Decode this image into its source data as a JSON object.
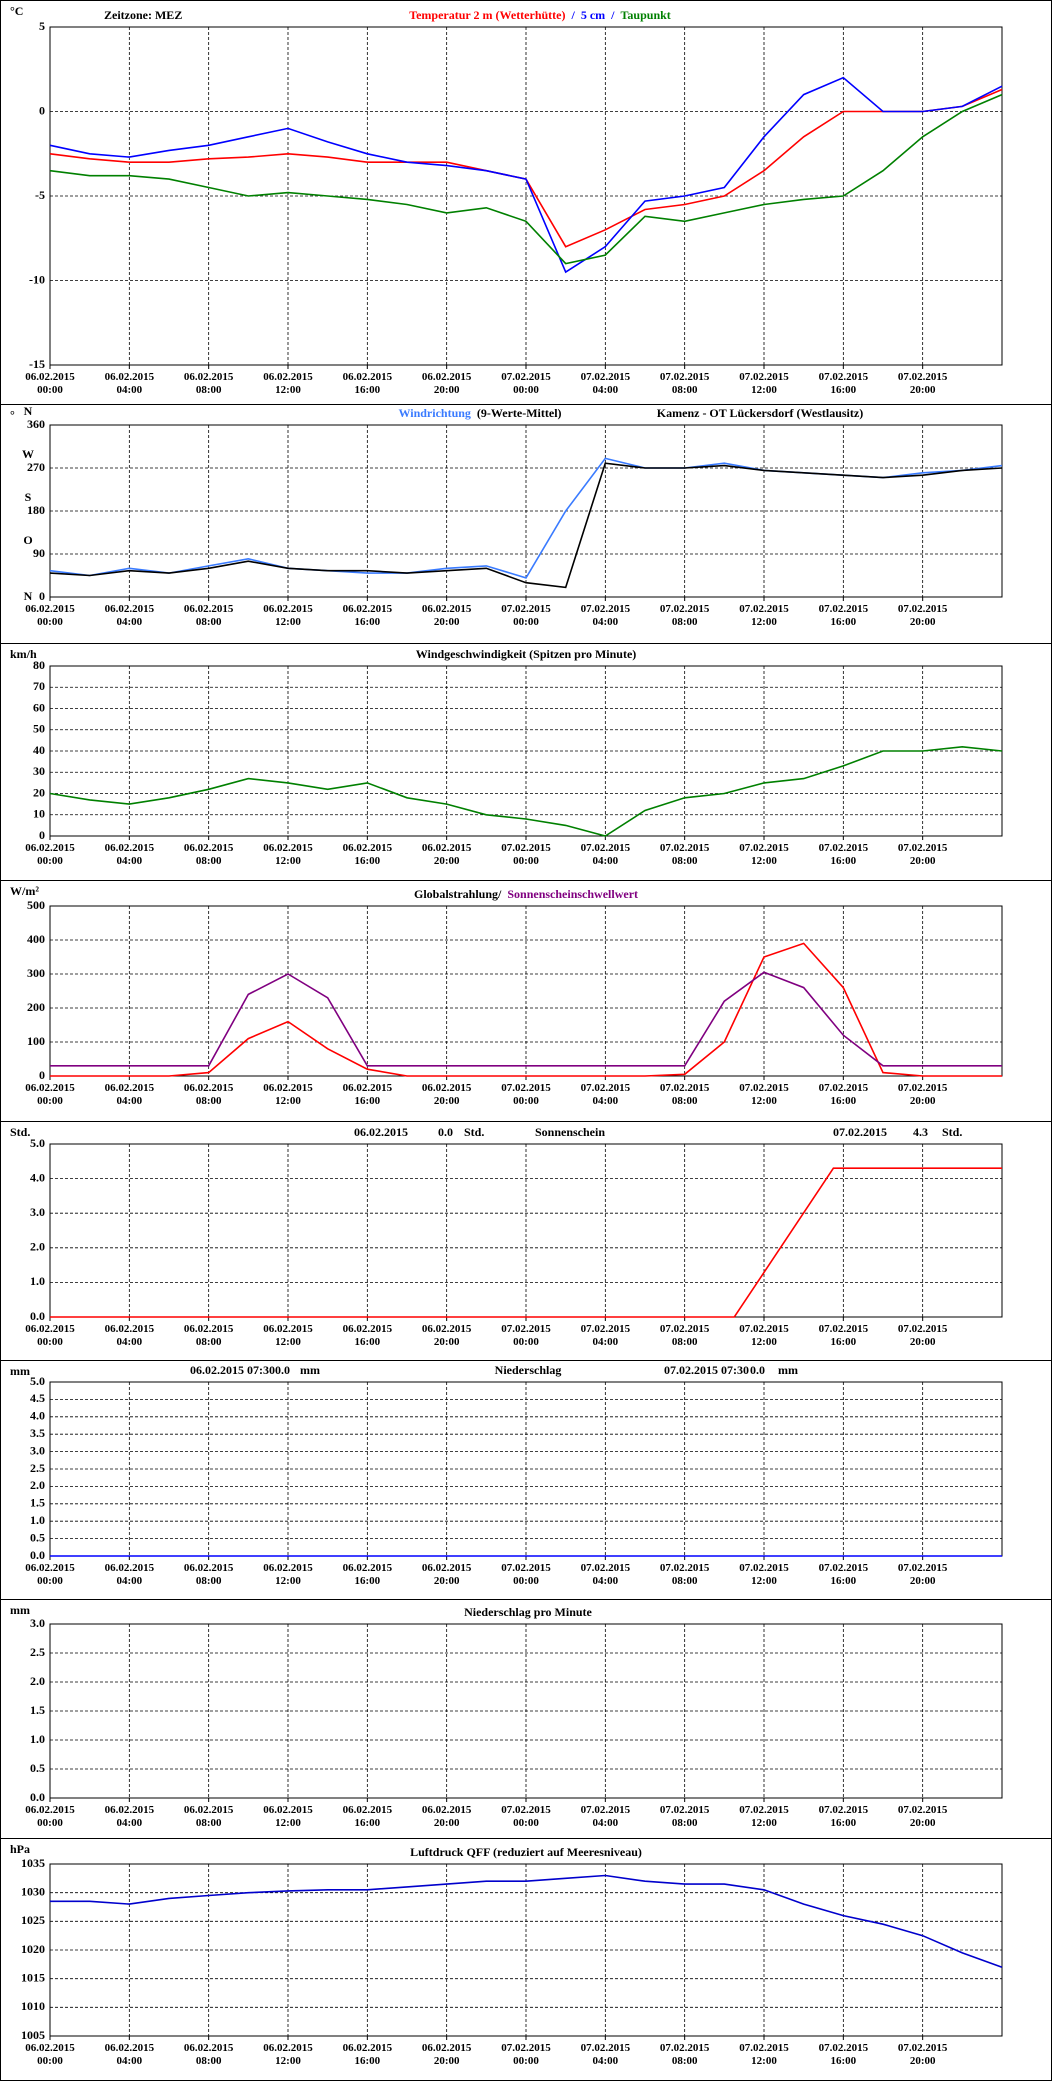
{
  "chart_data": [
    {
      "type": "line",
      "note": "Zeitzone: MEZ",
      "y_unit": "°C",
      "legend_separator": "/",
      "x": [
        0,
        2,
        4,
        6,
        8,
        10,
        12,
        14,
        16,
        18,
        20,
        22,
        24,
        26,
        28,
        30,
        32,
        34,
        36,
        38,
        40,
        42,
        44,
        46,
        48
      ],
      "series": [
        {
          "name": "Temperatur 2 m (Wetterhütte)",
          "color": "#ff0000",
          "values": [
            -2.5,
            -2.8,
            -3,
            -3,
            -2.8,
            -2.7,
            -2.5,
            -2.7,
            -3,
            -3,
            -3,
            -3.5,
            -4,
            -8,
            -7,
            -5.8,
            -5.5,
            -5,
            -3.5,
            -1.5,
            0,
            0,
            0,
            0.3,
            1.3
          ]
        },
        {
          "name": "5 cm",
          "color": "#0000ff",
          "values": [
            -2,
            -2.5,
            -2.7,
            -2.3,
            -2,
            -1.5,
            -1,
            -1.8,
            -2.5,
            -3,
            -3.2,
            -3.5,
            -4,
            -9.5,
            -8,
            -5.3,
            -5,
            -4.5,
            -1.5,
            1,
            2,
            0,
            0,
            0.3,
            1.5
          ]
        },
        {
          "name": "Taupunkt",
          "color": "#008000",
          "values": [
            -3.5,
            -3.8,
            -3.8,
            -4,
            -4.5,
            -5,
            -4.8,
            -5,
            -5.2,
            -5.5,
            -6,
            -5.7,
            -6.5,
            -9,
            -8.5,
            -6.2,
            -6.5,
            -6,
            -5.5,
            -5.2,
            -5,
            -3.5,
            -1.5,
            0,
            1
          ]
        }
      ],
      "xlim": [
        0,
        48
      ],
      "xticks": [
        {
          "value": 0,
          "label": "06.02.2015 00:00"
        },
        {
          "value": 4,
          "label": "06.02.2015 04:00"
        },
        {
          "value": 8,
          "label": "06.02.2015 08:00"
        },
        {
          "value": 12,
          "label": "06.02.2015 12:00"
        },
        {
          "value": 16,
          "label": "06.02.2015 16:00"
        },
        {
          "value": 20,
          "label": "06.02.2015 20:00"
        },
        {
          "value": 24,
          "label": "07.02.2015 00:00"
        },
        {
          "value": 28,
          "label": "07.02.2015 04:00"
        },
        {
          "value": 32,
          "label": "07.02.2015 08:00"
        },
        {
          "value": 36,
          "label": "07.02.2015 12:00"
        },
        {
          "value": 40,
          "label": "07.02.2015 16:00"
        },
        {
          "value": 44,
          "label": "07.02.2015 20:00"
        }
      ],
      "ylim": [
        -15,
        5
      ],
      "yticks": [
        -15,
        -10,
        -5,
        0,
        5
      ],
      "grid": true
    },
    {
      "type": "line",
      "title": "Kamenz - OT Lückersdorf (Westlausitz)",
      "y_unit": "°",
      "direction_labels": [
        "N",
        "O",
        "S",
        "W",
        "N"
      ],
      "x": [
        0,
        2,
        4,
        6,
        8,
        10,
        12,
        14,
        16,
        18,
        20,
        22,
        24,
        26,
        28,
        30,
        32,
        34,
        36,
        38,
        40,
        42,
        44,
        46,
        48
      ],
      "series": [
        {
          "name": "Windrichtung",
          "color": "#3a7bff",
          "values": [
            55,
            45,
            60,
            50,
            65,
            80,
            60,
            55,
            50,
            50,
            60,
            65,
            40,
            180,
            290,
            270,
            270,
            280,
            265,
            260,
            255,
            250,
            260,
            265,
            275
          ]
        },
        {
          "name": "(9-Werte-Mittel)",
          "color": "#000000",
          "values": [
            50,
            45,
            55,
            50,
            60,
            75,
            60,
            55,
            55,
            50,
            55,
            60,
            30,
            20,
            280,
            270,
            270,
            275,
            265,
            260,
            255,
            250,
            255,
            265,
            270
          ]
        }
      ],
      "xlim": [
        0,
        48
      ],
      "xticks": [
        {
          "value": 0,
          "label": "06.02.2015 00:00"
        },
        {
          "value": 4,
          "label": "06.02.2015 04:00"
        },
        {
          "value": 8,
          "label": "06.02.2015 08:00"
        },
        {
          "value": 12,
          "label": "06.02.2015 12:00"
        },
        {
          "value": 16,
          "label": "06.02.2015 16:00"
        },
        {
          "value": 20,
          "label": "06.02.2015 20:00"
        },
        {
          "value": 24,
          "label": "07.02.2015 00:00"
        },
        {
          "value": 28,
          "label": "07.02.2015 04:00"
        },
        {
          "value": 32,
          "label": "07.02.2015 08:00"
        },
        {
          "value": 36,
          "label": "07.02.2015 12:00"
        },
        {
          "value": 40,
          "label": "07.02.2015 16:00"
        },
        {
          "value": 44,
          "label": "07.02.2015 20:00"
        }
      ],
      "ylim": [
        0,
        360
      ],
      "yticks": [
        0,
        90,
        180,
        270,
        360
      ],
      "grid": true
    },
    {
      "type": "line",
      "title": "Windgeschwindigkeit (Spitzen pro Minute)",
      "y_unit": "km/h",
      "color": "#008000",
      "x": [
        0,
        2,
        4,
        6,
        8,
        10,
        12,
        14,
        16,
        18,
        20,
        22,
        24,
        26,
        28,
        30,
        32,
        34,
        36,
        38,
        40,
        42,
        44,
        46,
        48
      ],
      "values": [
        20,
        17,
        15,
        18,
        22,
        27,
        25,
        22,
        25,
        18,
        15,
        10,
        8,
        5,
        0,
        12,
        18,
        20,
        25,
        27,
        33,
        40,
        40,
        42,
        40
      ],
      "xlim": [
        0,
        48
      ],
      "xticks": [
        {
          "value": 0,
          "label": "06.02.2015 00:00"
        },
        {
          "value": 4,
          "label": "06.02.2015 04:00"
        },
        {
          "value": 8,
          "label": "06.02.2015 08:00"
        },
        {
          "value": 12,
          "label": "06.02.2015 12:00"
        },
        {
          "value": 16,
          "label": "06.02.2015 16:00"
        },
        {
          "value": 20,
          "label": "06.02.2015 20:00"
        },
        {
          "value": 24,
          "label": "07.02.2015 00:00"
        },
        {
          "value": 28,
          "label": "07.02.2015 04:00"
        },
        {
          "value": 32,
          "label": "07.02.2015 08:00"
        },
        {
          "value": 36,
          "label": "07.02.2015 12:00"
        },
        {
          "value": 40,
          "label": "07.02.2015 16:00"
        },
        {
          "value": 44,
          "label": "07.02.2015 20:00"
        }
      ],
      "ylim": [
        0,
        80
      ],
      "yticks": [
        0,
        10,
        20,
        30,
        40,
        50,
        60,
        70,
        80
      ],
      "grid": true
    },
    {
      "type": "line",
      "y_unit": "W/m²",
      "x": [
        0,
        2,
        4,
        6,
        8,
        10,
        12,
        14,
        16,
        18,
        20,
        22,
        24,
        26,
        28,
        30,
        32,
        34,
        36,
        38,
        40,
        42,
        44,
        46,
        48
      ],
      "series": [
        {
          "name": "Globalstrahlung/",
          "color": "#ff0000",
          "legend_color": "#000000",
          "values": [
            0,
            0,
            0,
            0,
            10,
            110,
            160,
            80,
            20,
            0,
            0,
            0,
            0,
            0,
            0,
            0,
            5,
            100,
            350,
            390,
            260,
            10,
            0,
            0,
            0
          ]
        },
        {
          "name": "Sonnenscheinschwellwert",
          "color": "#800080",
          "values": [
            30,
            30,
            30,
            30,
            30,
            240,
            300,
            230,
            30,
            30,
            30,
            30,
            30,
            30,
            30,
            30,
            30,
            220,
            305,
            260,
            120,
            30,
            30,
            30,
            30
          ]
        }
      ],
      "xlim": [
        0,
        48
      ],
      "xticks": [
        {
          "value": 0,
          "label": "06.02.2015 00:00"
        },
        {
          "value": 4,
          "label": "06.02.2015 04:00"
        },
        {
          "value": 8,
          "label": "06.02.2015 08:00"
        },
        {
          "value": 12,
          "label": "06.02.2015 12:00"
        },
        {
          "value": 16,
          "label": "06.02.2015 16:00"
        },
        {
          "value": 20,
          "label": "06.02.2015 20:00"
        },
        {
          "value": 24,
          "label": "07.02.2015 00:00"
        },
        {
          "value": 28,
          "label": "07.02.2015 04:00"
        },
        {
          "value": 32,
          "label": "07.02.2015 08:00"
        },
        {
          "value": 36,
          "label": "07.02.2015 12:00"
        },
        {
          "value": 40,
          "label": "07.02.2015 16:00"
        },
        {
          "value": 44,
          "label": "07.02.2015 20:00"
        }
      ],
      "ylim": [
        0,
        500
      ],
      "yticks": [
        0,
        100,
        200,
        300,
        400,
        500
      ],
      "grid": true
    },
    {
      "type": "line",
      "title": "Sonnenschein",
      "y_unit": "Std.",
      "color": "#ff0000",
      "annotations": [
        "06.02.2015",
        "0.0",
        "Std.",
        "07.02.2015",
        "4.3",
        "Std."
      ],
      "x": [
        0,
        34.5,
        39.5,
        48
      ],
      "values": [
        0,
        0,
        4.3,
        4.3
      ],
      "xlim": [
        0,
        48
      ],
      "xticks": [
        {
          "value": 0,
          "label": "06.02.2015 00:00"
        },
        {
          "value": 4,
          "label": "06.02.2015 04:00"
        },
        {
          "value": 8,
          "label": "06.02.2015 08:00"
        },
        {
          "value": 12,
          "label": "06.02.2015 12:00"
        },
        {
          "value": 16,
          "label": "06.02.2015 16:00"
        },
        {
          "value": 20,
          "label": "06.02.2015 20:00"
        },
        {
          "value": 24,
          "label": "07.02.2015 00:00"
        },
        {
          "value": 28,
          "label": "07.02.2015 04:00"
        },
        {
          "value": 32,
          "label": "07.02.2015 08:00"
        },
        {
          "value": 36,
          "label": "07.02.2015 12:00"
        },
        {
          "value": 40,
          "label": "07.02.2015 16:00"
        },
        {
          "value": 44,
          "label": "07.02.2015 20:00"
        }
      ],
      "ylim": [
        0,
        5
      ],
      "yticks": [
        {
          "value": 0,
          "label": "0.0"
        },
        {
          "value": 1,
          "label": "1.0"
        },
        {
          "value": 2,
          "label": "2.0"
        },
        {
          "value": 3,
          "label": "3.0"
        },
        {
          "value": 4,
          "label": "4.0"
        },
        {
          "value": 5,
          "label": "5.0"
        }
      ],
      "grid": true
    },
    {
      "type": "line",
      "title": "Niederschlag",
      "y_unit": "mm",
      "color": "#0000ff",
      "annotations": [
        "06.02.2015 07:30",
        "0.0",
        "mm",
        "07.02.2015 07:30",
        "0.0",
        "mm"
      ],
      "x": [
        0,
        48
      ],
      "values": [
        0,
        0
      ],
      "xlim": [
        0,
        48
      ],
      "xticks": [
        {
          "value": 0,
          "label": "06.02.2015 00:00"
        },
        {
          "value": 4,
          "label": "06.02.2015 04:00"
        },
        {
          "value": 8,
          "label": "06.02.2015 08:00"
        },
        {
          "value": 12,
          "label": "06.02.2015 12:00"
        },
        {
          "value": 16,
          "label": "06.02.2015 16:00"
        },
        {
          "value": 20,
          "label": "06.02.2015 20:00"
        },
        {
          "value": 24,
          "label": "07.02.2015 00:00"
        },
        {
          "value": 28,
          "label": "07.02.2015 04:00"
        },
        {
          "value": 32,
          "label": "07.02.2015 08:00"
        },
        {
          "value": 36,
          "label": "07.02.2015 12:00"
        },
        {
          "value": 40,
          "label": "07.02.2015 16:00"
        },
        {
          "value": 44,
          "label": "07.02.2015 20:00"
        }
      ],
      "ylim": [
        0,
        5
      ],
      "yticks": [
        {
          "value": 0,
          "label": "0.0"
        },
        0.5,
        {
          "value": 1,
          "label": "1.0"
        },
        1.5,
        {
          "value": 2,
          "label": "2.0"
        },
        2.5,
        {
          "value": 3,
          "label": "3.0"
        },
        3.5,
        {
          "value": 4,
          "label": "4.0"
        },
        4.5,
        {
          "value": 5,
          "label": "5.0"
        }
      ],
      "grid": true
    },
    {
      "type": "line",
      "title": "Niederschlag pro Minute",
      "y_unit": "mm",
      "xlim": [
        0,
        48
      ],
      "xticks": [
        {
          "value": 0,
          "label": "06.02.2015 00:00"
        },
        {
          "value": 4,
          "label": "06.02.2015 04:00"
        },
        {
          "value": 8,
          "label": "06.02.2015 08:00"
        },
        {
          "value": 12,
          "label": "06.02.2015 12:00"
        },
        {
          "value": 16,
          "label": "06.02.2015 16:00"
        },
        {
          "value": 20,
          "label": "06.02.2015 20:00"
        },
        {
          "value": 24,
          "label": "07.02.2015 00:00"
        },
        {
          "value": 28,
          "label": "07.02.2015 04:00"
        },
        {
          "value": 32,
          "label": "07.02.2015 08:00"
        },
        {
          "value": 36,
          "label": "07.02.2015 12:00"
        },
        {
          "value": 40,
          "label": "07.02.2015 16:00"
        },
        {
          "value": 44,
          "label": "07.02.2015 20:00"
        }
      ],
      "ylim": [
        0,
        3
      ],
      "yticks": [
        {
          "value": 0,
          "label": "0.0"
        },
        0.5,
        {
          "value": 1,
          "label": "1.0"
        },
        1.5,
        {
          "value": 2,
          "label": "2.0"
        },
        2.5,
        {
          "value": 3,
          "label": "3.0"
        }
      ],
      "grid": true
    },
    {
      "type": "line",
      "title": "Luftdruck QFF (reduziert auf Meeresniveau)",
      "y_unit": "hPa",
      "color": "#0000cc",
      "x": [
        0,
        2,
        4,
        6,
        8,
        10,
        12,
        14,
        16,
        18,
        20,
        22,
        24,
        26,
        28,
        30,
        32,
        34,
        36,
        38,
        40,
        42,
        44,
        46,
        48
      ],
      "values": [
        1028.5,
        1028.5,
        1028,
        1029,
        1029.5,
        1030,
        1030.3,
        1030.5,
        1030.5,
        1031,
        1031.5,
        1032,
        1032,
        1032.5,
        1033,
        1032,
        1031.5,
        1031.5,
        1030.5,
        1028,
        1026,
        1024.5,
        1022.5,
        1019.5,
        1017
      ],
      "xlim": [
        0,
        48
      ],
      "xticks": [
        {
          "value": 0,
          "label": "06.02.2015 00:00"
        },
        {
          "value": 4,
          "label": "06.02.2015 04:00"
        },
        {
          "value": 8,
          "label": "06.02.2015 08:00"
        },
        {
          "value": 12,
          "label": "06.02.2015 12:00"
        },
        {
          "value": 16,
          "label": "06.02.2015 16:00"
        },
        {
          "value": 20,
          "label": "06.02.2015 20:00"
        },
        {
          "value": 24,
          "label": "07.02.2015 00:00"
        },
        {
          "value": 28,
          "label": "07.02.2015 04:00"
        },
        {
          "value": 32,
          "label": "07.02.2015 08:00"
        },
        {
          "value": 36,
          "label": "07.02.2015 12:00"
        },
        {
          "value": 40,
          "label": "07.02.2015 16:00"
        },
        {
          "value": 44,
          "label": "07.02.2015 20:00"
        }
      ],
      "ylim": [
        1005,
        1035
      ],
      "yticks": [
        1005,
        1010,
        1015,
        1020,
        1025,
        1030,
        1035
      ],
      "grid": true
    }
  ]
}
